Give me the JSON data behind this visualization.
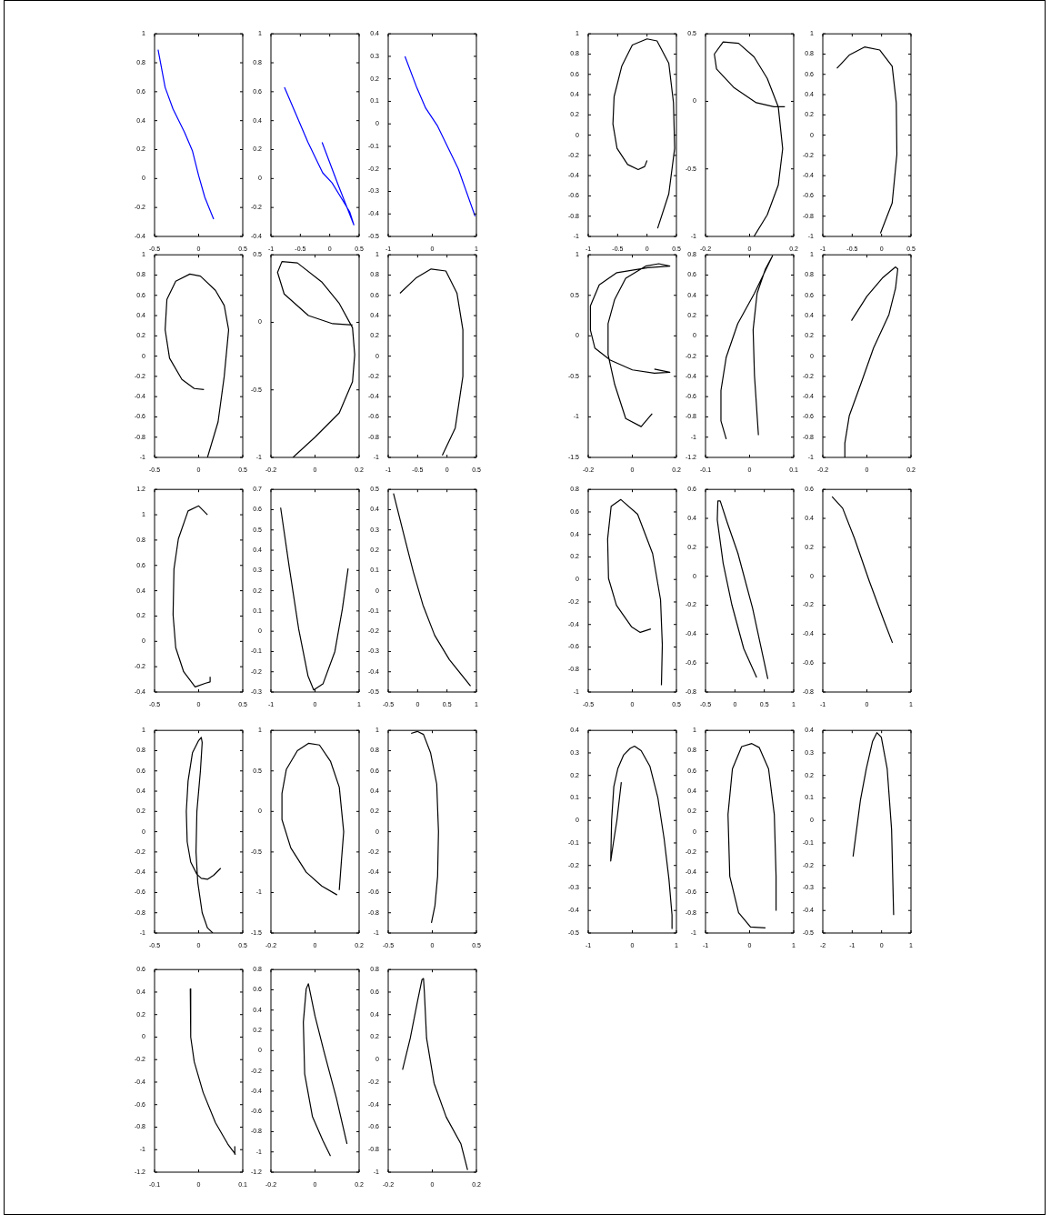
{
  "chart_data": [
    {
      "type": "line",
      "color": "#0000ff",
      "x": [
        -0.46,
        -0.38,
        -0.29,
        -0.16,
        -0.07,
        0,
        0.07,
        0.17
      ],
      "values": [
        0.89,
        0.63,
        0.48,
        0.32,
        0.19,
        0.02,
        -0.13,
        -0.28
      ],
      "xlim": [
        -0.5,
        0.5
      ],
      "xticks": [
        -0.5,
        0,
        0.5
      ],
      "ylim": [
        -0.4,
        1
      ],
      "yticks": [
        -0.4,
        -0.2,
        0,
        0.2,
        0.4,
        0.6,
        0.8,
        1
      ]
    },
    {
      "type": "line",
      "color": "#0000ff",
      "x": [
        -0.77,
        -0.37,
        -0.12,
        0.04,
        0.19,
        0.34,
        0.41,
        0.14,
        -0.13
      ],
      "values": [
        0.63,
        0.25,
        0.04,
        -0.03,
        -0.13,
        -0.23,
        -0.32,
        -0.04,
        0.25
      ],
      "xlim": [
        -1,
        0.5
      ],
      "xticks": [
        -1,
        -0.5,
        0,
        0.5
      ],
      "ylim": [
        -0.4,
        1
      ],
      "yticks": [
        -0.4,
        -0.2,
        0,
        0.2,
        0.4,
        0.6,
        0.8,
        1
      ]
    },
    {
      "type": "line",
      "color": "#0000ff",
      "x": [
        -0.62,
        -0.35,
        -0.15,
        0.12,
        0.59,
        0.97
      ],
      "values": [
        0.3,
        0.16,
        0.07,
        -0.01,
        -0.2,
        -0.41
      ],
      "xlim": [
        -1,
        1
      ],
      "xticks": [
        -1,
        0,
        1
      ],
      "ylim": [
        -0.5,
        0.4
      ],
      "yticks": [
        -0.5,
        -0.4,
        -0.3,
        -0.2,
        -0.1,
        0,
        0.1,
        0.2,
        0.3,
        0.4
      ]
    },
    {
      "type": "line",
      "color": "#000000",
      "x": [
        0.18,
        0.37,
        0.47,
        0.45,
        0.37,
        0.17,
        0,
        -0.25,
        -0.43,
        -0.56,
        -0.58,
        -0.51,
        -0.33,
        -0.15,
        -0.04,
        0
      ],
      "values": [
        -0.92,
        -0.58,
        -0.13,
        0.32,
        0.71,
        0.93,
        0.95,
        0.89,
        0.68,
        0.38,
        0.11,
        -0.13,
        -0.29,
        -0.34,
        -0.31,
        -0.25
      ],
      "xlim": [
        -1,
        0.5
      ],
      "xticks": [
        -1,
        -0.5,
        0,
        0.5
      ],
      "ylim": [
        -1,
        1
      ],
      "yticks": [
        -1,
        -0.8,
        -0.6,
        -0.4,
        -0.2,
        0,
        0.2,
        0.4,
        0.6,
        0.8,
        1
      ]
    },
    {
      "type": "line",
      "color": "#000000",
      "x": [
        0.02,
        0.08,
        0.13,
        0.15,
        0.13,
        0.08,
        0.02,
        -0.05,
        -0.12,
        -0.16,
        -0.15,
        -0.07,
        0.03,
        0.11,
        0.16
      ],
      "values": [
        -1,
        -0.84,
        -0.62,
        -0.35,
        -0.04,
        0.17,
        0.33,
        0.43,
        0.44,
        0.35,
        0.24,
        0.1,
        -0.01,
        -0.04,
        -0.04
      ],
      "xlim": [
        -0.2,
        0.2
      ],
      "xticks": [
        -0.2,
        0,
        0.2
      ],
      "ylim": [
        -1,
        0.5
      ],
      "yticks": [
        -1,
        -0.5,
        0,
        0.5
      ]
    },
    {
      "type": "line",
      "color": "#000000",
      "x": [
        -0.02,
        0.18,
        0.26,
        0.25,
        0.18,
        -0.03,
        -0.29,
        -0.55,
        -0.76
      ],
      "values": [
        -0.97,
        -0.67,
        -0.19,
        0.32,
        0.68,
        0.84,
        0.87,
        0.79,
        0.66
      ],
      "xlim": [
        -1,
        0.5
      ],
      "xticks": [
        -1,
        -0.5,
        0,
        0.5
      ],
      "ylim": [
        -1,
        1
      ],
      "yticks": [
        -1,
        -0.8,
        -0.6,
        -0.4,
        -0.2,
        0,
        0.2,
        0.4,
        0.6,
        0.8,
        1
      ]
    },
    {
      "type": "line",
      "color": "#000000",
      "x": [
        0.1,
        0.22,
        0.29,
        0.34,
        0.29,
        0.19,
        0.02,
        -0.1,
        -0.26,
        -0.36,
        -0.38,
        -0.33,
        -0.19,
        -0.05,
        0.06
      ],
      "values": [
        -1,
        -0.65,
        -0.2,
        0.26,
        0.5,
        0.65,
        0.79,
        0.81,
        0.74,
        0.56,
        0.26,
        -0.02,
        -0.23,
        -0.32,
        -0.33
      ],
      "xlim": [
        -0.5,
        0.5
      ],
      "xticks": [
        -0.5,
        0,
        0.5
      ],
      "ylim": [
        -1,
        1
      ],
      "yticks": [
        -1,
        -0.8,
        -0.6,
        -0.4,
        -0.2,
        0,
        0.2,
        0.4,
        0.6,
        0.8,
        1
      ]
    },
    {
      "type": "line",
      "color": "#000000",
      "x": [
        -0.1,
        0,
        0.11,
        0.17,
        0.18,
        0.17,
        0.11,
        0.03,
        -0.08,
        -0.15,
        -0.17,
        -0.14,
        -0.03,
        0.08,
        0.17
      ],
      "values": [
        -1,
        -0.85,
        -0.67,
        -0.44,
        -0.24,
        -0.04,
        0.14,
        0.3,
        0.44,
        0.45,
        0.37,
        0.21,
        0.05,
        -0.01,
        -0.02
      ],
      "xlim": [
        -0.2,
        0.2
      ],
      "xticks": [
        -0.2,
        0,
        0.2
      ],
      "ylim": [
        -1,
        0.5
      ],
      "yticks": [
        -1,
        -0.5,
        0,
        0.5
      ]
    },
    {
      "type": "line",
      "color": "#000000",
      "x": [
        -0.08,
        0.14,
        0.27,
        0.27,
        0.17,
        -0.02,
        -0.27,
        -0.53,
        -0.8
      ],
      "values": [
        -0.98,
        -0.71,
        -0.2,
        0.26,
        0.62,
        0.84,
        0.86,
        0.77,
        0.62
      ],
      "xlim": [
        -1,
        0.5
      ],
      "xticks": [
        -1,
        -0.5,
        0,
        0.5
      ],
      "ylim": [
        -1,
        1
      ],
      "yticks": [
        -1,
        -0.8,
        -0.6,
        -0.4,
        -0.2,
        0,
        0.2,
        0.4,
        0.6,
        0.8,
        1
      ]
    },
    {
      "type": "line",
      "color": "#000000",
      "x": [
        0.09,
        0.04,
        -0.03,
        -0.08,
        -0.11,
        -0.11,
        -0.08,
        -0.03,
        0.06,
        0.12,
        0.17,
        0.07,
        -0.07,
        -0.15,
        -0.19,
        -0.19,
        -0.17,
        -0.1,
        0,
        0.1,
        0.17,
        0.1
      ],
      "values": [
        -0.96,
        -1.12,
        -1.02,
        -0.6,
        -0.23,
        0.15,
        0.45,
        0.71,
        0.86,
        0.89,
        0.86,
        0.84,
        0.78,
        0.63,
        0.37,
        0.07,
        -0.15,
        -0.3,
        -0.42,
        -0.46,
        -0.45,
        -0.41
      ],
      "xlim": [
        -0.2,
        0.2
      ],
      "xticks": [
        -0.2,
        0,
        0.2
      ],
      "ylim": [
        -1.5,
        1
      ],
      "yticks": [
        -1.5,
        -1,
        -0.5,
        0,
        0.5,
        1
      ]
    },
    {
      "type": "line",
      "color": "#000000",
      "x": [
        -0.053,
        -0.065,
        -0.065,
        -0.053,
        -0.027,
        0.011,
        0.052,
        0.036,
        0.017,
        0.008,
        0.011,
        0.02
      ],
      "values": [
        -1.02,
        -0.84,
        -0.54,
        -0.21,
        0.12,
        0.42,
        0.79,
        0.66,
        0.42,
        0.06,
        -0.39,
        -0.98
      ],
      "xlim": [
        -0.1,
        0.1
      ],
      "xticks": [
        -0.1,
        0,
        0.1
      ],
      "ylim": [
        -1.2,
        0.8
      ],
      "yticks": [
        -1.2,
        -1,
        -0.8,
        -0.6,
        -0.4,
        -0.2,
        0,
        0.2,
        0.4,
        0.6,
        0.8
      ]
    },
    {
      "type": "line",
      "color": "#000000",
      "x": [
        -0.1,
        -0.1,
        -0.08,
        -0.025,
        0.03,
        0.1,
        0.13,
        0.14,
        0.13,
        0.07,
        0,
        -0.07
      ],
      "values": [
        -1,
        -0.86,
        -0.59,
        -0.26,
        0.08,
        0.41,
        0.67,
        0.86,
        0.88,
        0.77,
        0.59,
        0.35
      ],
      "xlim": [
        -0.2,
        0.2
      ],
      "xticks": [
        -0.2,
        0,
        0.2
      ],
      "ylim": [
        -1,
        1
      ],
      "yticks": [
        -1,
        -0.8,
        -0.6,
        -0.4,
        -0.2,
        0,
        0.2,
        0.4,
        0.6,
        0.8,
        1
      ]
    },
    {
      "type": "line",
      "color": "#000000",
      "x": [
        0.1,
        0,
        -0.12,
        -0.23,
        -0.28,
        -0.29,
        -0.26,
        -0.17,
        -0.04,
        0.08,
        0.13,
        0.13
      ],
      "values": [
        1,
        1.07,
        1.03,
        0.81,
        0.57,
        0.21,
        -0.05,
        -0.24,
        -0.36,
        -0.33,
        -0.32,
        -0.28
      ],
      "xlim": [
        -0.5,
        0.5
      ],
      "xticks": [
        -0.5,
        0,
        0.5
      ],
      "ylim": [
        -0.4,
        1.2
      ],
      "yticks": [
        -0.4,
        -0.2,
        0,
        0.2,
        0.4,
        0.6,
        0.8,
        1,
        1.2
      ]
    },
    {
      "type": "line",
      "color": "#000000",
      "x": [
        -0.78,
        -0.58,
        -0.37,
        -0.16,
        -0.03,
        0.18,
        0.45,
        0.62,
        0.75
      ],
      "values": [
        0.61,
        0.31,
        0.01,
        -0.22,
        -0.29,
        -0.26,
        -0.1,
        0.11,
        0.31
      ],
      "xlim": [
        -1,
        1
      ],
      "xticks": [
        -1,
        0,
        1
      ],
      "ylim": [
        -0.3,
        0.7
      ],
      "yticks": [
        -0.3,
        -0.2,
        -0.1,
        0,
        0.1,
        0.2,
        0.3,
        0.4,
        0.5,
        0.6,
        0.7
      ]
    },
    {
      "type": "line",
      "color": "#000000",
      "x": [
        -0.41,
        -0.22,
        -0.07,
        0.09,
        0.29,
        0.54,
        0.9
      ],
      "values": [
        0.48,
        0.26,
        0.09,
        -0.07,
        -0.22,
        -0.34,
        -0.47
      ],
      "xlim": [
        -0.5,
        1
      ],
      "xticks": [
        -0.5,
        0,
        0.5,
        1
      ],
      "ylim": [
        -0.5,
        0.5
      ],
      "yticks": [
        -0.5,
        -0.4,
        -0.3,
        -0.2,
        -0.1,
        0,
        0.1,
        0.2,
        0.3,
        0.4,
        0.5
      ]
    },
    {
      "type": "line",
      "color": "#000000",
      "x": [
        0.33,
        0.34,
        0.32,
        0.23,
        0.06,
        -0.13,
        -0.24,
        -0.28,
        -0.27,
        -0.18,
        -0.01,
        0.09,
        0.21
      ],
      "values": [
        -0.94,
        -0.58,
        -0.18,
        0.23,
        0.58,
        0.71,
        0.65,
        0.36,
        0.01,
        -0.23,
        -0.42,
        -0.47,
        -0.44
      ],
      "xlim": [
        -0.5,
        0.5
      ],
      "xticks": [
        -0.5,
        0,
        0.5
      ],
      "ylim": [
        -1,
        0.8
      ],
      "yticks": [
        -1,
        -0.8,
        -0.6,
        -0.4,
        -0.2,
        0,
        0.2,
        0.4,
        0.6,
        0.8
      ]
    },
    {
      "type": "line",
      "color": "#000000",
      "x": [
        0.37,
        0.15,
        -0.05,
        -0.2,
        -0.3,
        -0.29,
        -0.25,
        -0.13,
        0.05,
        0.3,
        0.56
      ],
      "values": [
        -0.7,
        -0.5,
        -0.2,
        0.09,
        0.39,
        0.52,
        0.52,
        0.37,
        0.16,
        -0.22,
        -0.71
      ],
      "xlim": [
        -0.5,
        1
      ],
      "xticks": [
        -0.5,
        0,
        0.5,
        1
      ],
      "ylim": [
        -0.8,
        0.6
      ],
      "yticks": [
        -0.8,
        -0.6,
        -0.4,
        -0.2,
        0,
        0.2,
        0.4,
        0.6
      ]
    },
    {
      "type": "line",
      "color": "#000000",
      "x": [
        -0.79,
        -0.55,
        -0.28,
        0.05,
        0.39,
        0.58
      ],
      "values": [
        0.55,
        0.47,
        0.26,
        -0.03,
        -0.31,
        -0.46
      ],
      "xlim": [
        -1,
        1
      ],
      "xticks": [
        -1,
        0,
        1
      ],
      "ylim": [
        -0.8,
        0.6
      ],
      "yticks": [
        -0.8,
        -0.6,
        -0.4,
        -0.2,
        0,
        0.2,
        0.4,
        0.6
      ]
    },
    {
      "type": "line",
      "color": "#000000",
      "x": [
        0.25,
        0.17,
        0.1,
        0.03,
        -0.02,
        -0.09,
        -0.13,
        -0.14,
        -0.12,
        -0.07,
        0,
        0.03,
        0.04,
        0.02,
        -0.02,
        -0.03,
        -0.01,
        0.04,
        0.1,
        0.16
      ],
      "values": [
        -0.36,
        -0.43,
        -0.47,
        -0.46,
        -0.42,
        -0.3,
        -0.1,
        0.2,
        0.5,
        0.78,
        0.9,
        0.93,
        0.88,
        0.6,
        0.2,
        -0.2,
        -0.5,
        -0.8,
        -0.95,
        -1
      ],
      "xlim": [
        -0.5,
        0.5
      ],
      "xticks": [
        -0.5,
        0,
        0.5
      ],
      "ylim": [
        -1,
        1
      ],
      "yticks": [
        -1,
        -0.8,
        -0.6,
        -0.4,
        -0.2,
        0,
        0.2,
        0.4,
        0.6,
        0.8,
        1
      ]
    },
    {
      "type": "line",
      "color": "#000000",
      "x": [
        0.11,
        0.12,
        0.13,
        0.11,
        0.07,
        0.02,
        -0.03,
        -0.08,
        -0.13,
        -0.15,
        -0.15,
        -0.11,
        -0.04,
        0.03,
        0.1
      ],
      "values": [
        -0.97,
        -0.6,
        -0.25,
        0.3,
        0.62,
        0.82,
        0.84,
        0.75,
        0.52,
        0.22,
        -0.1,
        -0.45,
        -0.75,
        -0.92,
        -1.03
      ],
      "xlim": [
        -0.2,
        0.2
      ],
      "xticks": [
        -0.2,
        0,
        0.2
      ],
      "ylim": [
        -1.5,
        1
      ],
      "yticks": [
        -1.5,
        -1,
        -0.5,
        0,
        0.5,
        1
      ]
    },
    {
      "type": "line",
      "color": "#000000",
      "x": [
        -0.24,
        -0.17,
        -0.1,
        -0.02,
        0.05,
        0.07,
        0.06,
        0.03,
        -0.01
      ],
      "values": [
        0.97,
        0.99,
        0.96,
        0.78,
        0.47,
        0,
        -0.44,
        -0.73,
        -0.9
      ],
      "xlim": [
        -0.5,
        0.5
      ],
      "xticks": [
        -0.5,
        0,
        0.5
      ],
      "ylim": [
        -1,
        1
      ],
      "yticks": [
        -1,
        -0.8,
        -0.6,
        -0.4,
        -0.2,
        0,
        0.2,
        0.4,
        0.6,
        0.8,
        1
      ]
    },
    {
      "type": "line",
      "color": "#000000",
      "x": [
        -0.25,
        -0.35,
        -0.43,
        -0.49,
        -0.47,
        -0.42,
        -0.33,
        -0.2,
        -0.05,
        0.05,
        0.2,
        0.4,
        0.58,
        0.72,
        0.83,
        0.9,
        0.9
      ],
      "values": [
        0.17,
        0,
        -0.1,
        -0.18,
        0,
        0.15,
        0.23,
        0.29,
        0.32,
        0.33,
        0.31,
        0.24,
        0.1,
        -0.08,
        -0.26,
        -0.42,
        -0.48
      ],
      "xlim": [
        -1,
        1
      ],
      "xticks": [
        -1,
        0,
        1
      ],
      "ylim": [
        -0.5,
        0.4
      ],
      "yticks": [
        -0.5,
        -0.4,
        -0.3,
        -0.2,
        -0.1,
        0,
        0.1,
        0.2,
        0.3,
        0.4
      ]
    },
    {
      "type": "line",
      "color": "#000000",
      "x": [
        0.6,
        0.6,
        0.56,
        0.43,
        0.22,
        0.05,
        -0.18,
        -0.39,
        -0.49,
        -0.45,
        -0.25,
        0.02,
        0.36
      ],
      "values": [
        -0.78,
        -0.44,
        0.17,
        0.62,
        0.83,
        0.87,
        0.84,
        0.62,
        0.17,
        -0.44,
        -0.8,
        -0.94,
        -0.95
      ],
      "xlim": [
        -1,
        1
      ],
      "xticks": [
        -1,
        0,
        1
      ],
      "ylim": [
        -1,
        1
      ],
      "yticks": [
        -1,
        -0.8,
        -0.6,
        -0.4,
        -0.2,
        0,
        0.2,
        0.4,
        0.6,
        0.8,
        1
      ]
    },
    {
      "type": "line",
      "color": "#000000",
      "x": [
        -0.97,
        -0.72,
        -0.52,
        -0.31,
        -0.16,
        -0.01,
        0.19,
        0.34,
        0.41
      ],
      "values": [
        -0.16,
        0.09,
        0.23,
        0.35,
        0.39,
        0.37,
        0.23,
        -0.04,
        -0.42
      ],
      "xlim": [
        -2,
        1
      ],
      "xticks": [
        -2,
        -1,
        0,
        1
      ],
      "ylim": [
        -0.5,
        0.4
      ],
      "yticks": [
        -0.5,
        -0.4,
        -0.3,
        -0.2,
        -0.1,
        0,
        0.1,
        0.2,
        0.3,
        0.4
      ]
    },
    {
      "type": "line",
      "color": "#000000",
      "x": [
        -0.019,
        -0.018,
        -0.01,
        0.01,
        0.038,
        0.066,
        0.083,
        0.082
      ],
      "values": [
        0.43,
        0,
        -0.22,
        -0.49,
        -0.76,
        -0.95,
        -1.04,
        -0.97
      ],
      "xlim": [
        -0.1,
        0.1
      ],
      "xticks": [
        -0.1,
        0,
        0.1
      ],
      "ylim": [
        -1.2,
        0.6
      ],
      "yticks": [
        -1.2,
        -1,
        -0.8,
        -0.6,
        -0.4,
        -0.2,
        0,
        0.2,
        0.4,
        0.6
      ]
    },
    {
      "type": "line",
      "color": "#000000",
      "x": [
        0.145,
        0.097,
        0.042,
        0,
        -0.03,
        -0.04,
        -0.053,
        -0.047,
        -0.012,
        0.036,
        0.07
      ],
      "values": [
        -0.92,
        -0.47,
        -0.02,
        0.34,
        0.66,
        0.61,
        0.28,
        -0.23,
        -0.65,
        -0.89,
        -1.04
      ],
      "xlim": [
        -0.2,
        0.2
      ],
      "xticks": [
        -0.2,
        0,
        0.2
      ],
      "ylim": [
        -1.2,
        0.8
      ],
      "yticks": [
        -1.2,
        -1,
        -0.8,
        -0.6,
        -0.4,
        -0.2,
        0,
        0.2,
        0.4,
        0.6,
        0.8
      ]
    },
    {
      "type": "line",
      "color": "#000000",
      "x": [
        -0.135,
        -0.1,
        -0.067,
        -0.047,
        -0.04,
        -0.036,
        -0.026,
        0.008,
        0.063,
        0.13,
        0.16
      ],
      "values": [
        -0.09,
        0.19,
        0.52,
        0.71,
        0.72,
        0.6,
        0.19,
        -0.21,
        -0.51,
        -0.75,
        -0.98
      ],
      "xlim": [
        -0.2,
        0.2
      ],
      "xticks": [
        -0.2,
        0,
        0.2
      ],
      "ylim": [
        -1,
        0.8
      ],
      "yticks": [
        -1,
        -0.8,
        -0.6,
        -0.4,
        -0.2,
        0,
        0.2,
        0.4,
        0.6,
        0.8
      ]
    }
  ]
}
